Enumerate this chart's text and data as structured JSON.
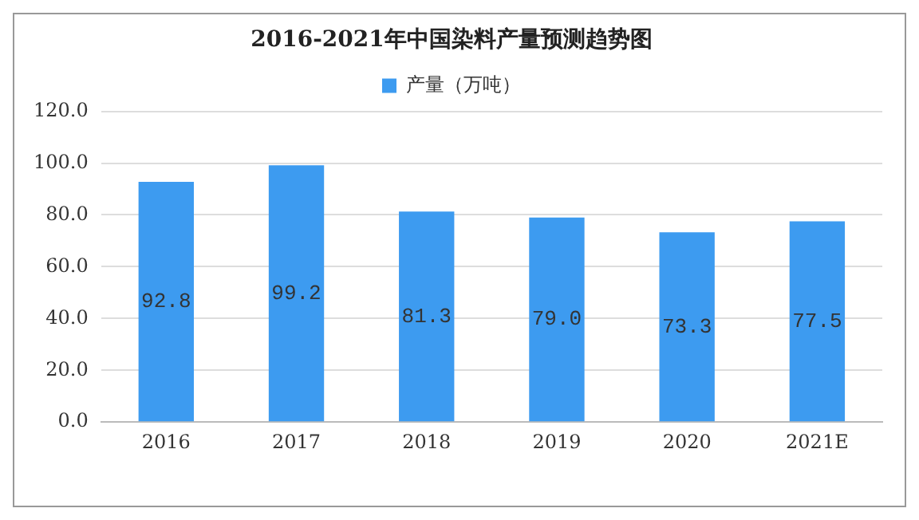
{
  "chart_data": {
    "type": "bar",
    "title": "2016-2021年中国染料产量预测趋势图",
    "categories": [
      "2016",
      "2017",
      "2018",
      "2019",
      "2020",
      "2021E"
    ],
    "series": [
      {
        "name": "产量（万吨）",
        "color": "#3d9bf0",
        "values": [
          92.8,
          99.2,
          81.3,
          79.0,
          73.3,
          77.5
        ],
        "value_labels": [
          "92.8",
          "99.2",
          "81.3",
          "79.0",
          "73.3",
          "77.5"
        ]
      }
    ],
    "ylim": [
      0,
      120
    ],
    "yticks": [
      {
        "value": 0,
        "label": "0.0"
      },
      {
        "value": 20,
        "label": "20.0"
      },
      {
        "value": 40,
        "label": "40.0"
      },
      {
        "value": 60,
        "label": "60.0"
      },
      {
        "value": 80,
        "label": "80.0"
      },
      {
        "value": 100,
        "label": "100.0"
      },
      {
        "value": 120,
        "label": "120.0"
      }
    ],
    "grid": "y",
    "legend": "top"
  }
}
